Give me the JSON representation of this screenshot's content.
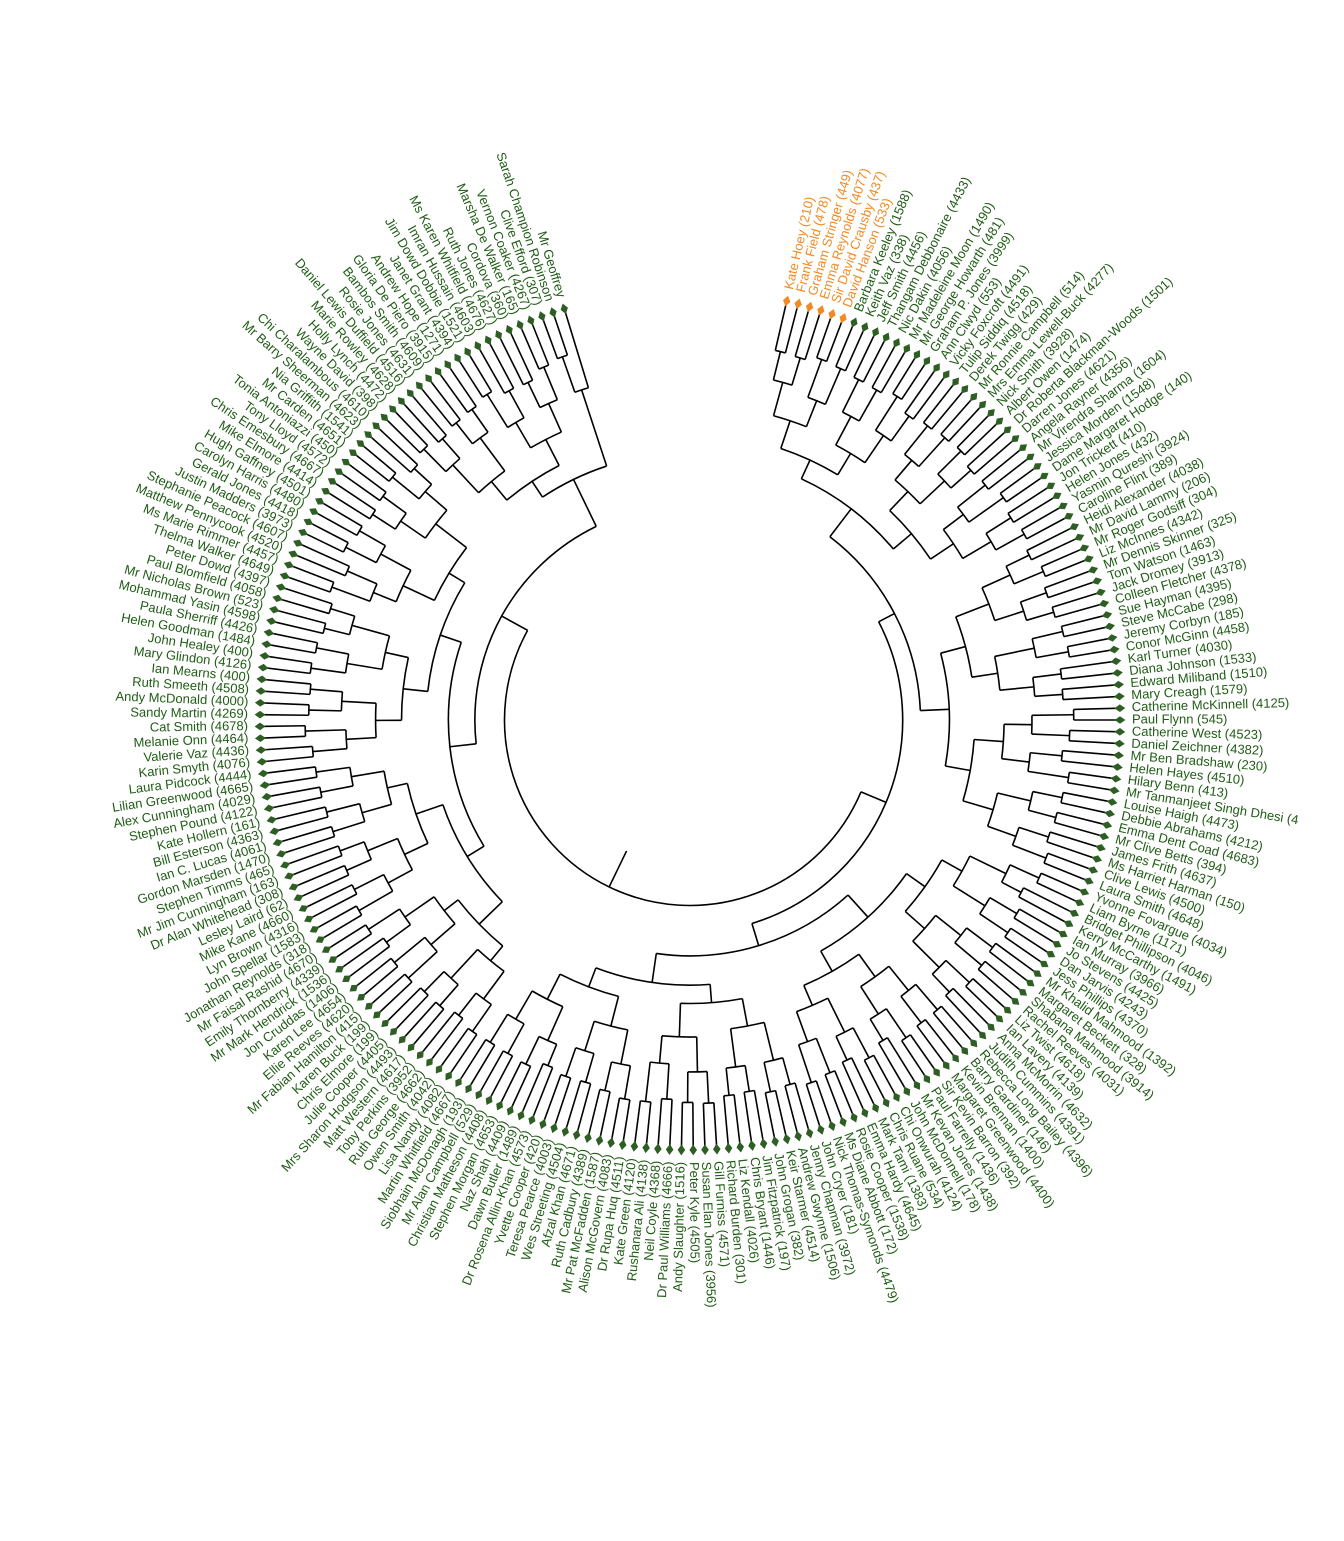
{
  "chart_data": {
    "type": "dendrogram",
    "layout": "circular",
    "title": "",
    "colors": {
      "branch": "#000000",
      "group_main": "#2e5e24",
      "group_highlight": "#f08a24",
      "label_main": "#1f5c15",
      "label_highlight": "#f08a24"
    },
    "highlight_group": [
      "Kate Hoey (210)",
      "Frank Field (478)",
      "Graham Stringer (449)",
      "Emma Reynolds (4077)",
      "Sir David Crausby (437)",
      "David Hanson (533)"
    ],
    "leaves": [
      "Kate Hoey (210)",
      "Frank Field (478)",
      "Graham Stringer (449)",
      "Emma Reynolds (4077)",
      "Sir David Crausby (437)",
      "David Hanson (533)",
      "Barbara Keeley (1588)",
      "Keith Vaz (338)",
      "Jeff Smith (4456)",
      "Thangam Debbonaire (4433)",
      "Nic Dakin (4056)",
      "Mr Madeleine Moon (1490)",
      "Mr George Howarth (481)",
      "Graham P. Jones (3999)",
      "Ann Clwyd (553)",
      "Vicky Foxcroft (4491)",
      "Tulip Siddiq (4518)",
      "Derek Twigg (429)",
      "Mr Ronnie Campbell (514)",
      "Mrs Emma Lewell-Buck (4277)",
      "Nick Smith (3928)",
      "Albert Owen (1474)",
      "Dr Roberta Blackman-Woods (1501)",
      "Darren Jones (4621)",
      "Angela Rayner (4356)",
      "Mr Virendra Sharma (1604)",
      "Jessica Morden (1548)",
      "Dame Margaret Hodge (140)",
      "Jon Trickett (410)",
      "Helen Jones (432)",
      "Yasmin Qureshi (3924)",
      "Caroline Flint (389)",
      "Heidi Alexander (4038)",
      "Mr David Lammy (206)",
      "Mr Roger Godsiff (304)",
      "Liz McInnes (4342)",
      "Mr Dennis Skinner (325)",
      "Tom Watson (1463)",
      "Jack Dromey (3913)",
      "Colleen Fletcher (4378)",
      "Sue Hayman (4395)",
      "Steve McCabe (298)",
      "Jeremy Corbyn (185)",
      "Conor McGinn (4458)",
      "Karl Turner (4030)",
      "Diana Johnson (1533)",
      "Edward Miliband (1510)",
      "Mary Creagh (1579)",
      "Catherine McKinnell (4125)",
      "Paul Flynn (545)",
      "Catherine West (4523)",
      "Daniel Zeichner (4382)",
      "Mr Ben Bradshaw (230)",
      "Helen Hayes (4510)",
      "Hilary Benn (413)",
      "Mr Tanmanjeet Singh Dhesi (4",
      "Louise Haigh (4473)",
      "Debbie Abrahams (4212)",
      "Emma Dent Coad (4683)",
      "Mr Clive Betts (394)",
      "James Frith (4637)",
      "Ms Harriet Harman (150)",
      "Clive Lewis (4500)",
      "Laura Smith (4648)",
      "Yvonne Fovargue (4034)",
      "Liam Byrne (1171)",
      "Bridget Phillipson (4046)",
      "Kerry McCarthy (1491)",
      "Ian Murray (3966)",
      "Jo Stevens (4425)",
      "Dan Jarvis (4243)",
      "Jess Phillips (4370)",
      "Mr Khalid Mahmood (1392)",
      "Margaret Beckett (328)",
      "Shabana Mahmood (3914)",
      "Rachel Reeves (4031)",
      "Liz Twist (4618)",
      "Ian Lavery (4139)",
      "Anna McMorrin (4632)",
      "Judith Cummins (4391)",
      "Rebecca Long Bailey (4396)",
      "Barry Gardiner (146)",
      "Kevin Brennan (1400)",
      "Margaret Greenwood (4400)",
      "Sir Kevin Barron (392)",
      "Paul Farrelly (1436)",
      "Mr Kevan Jones (1438)",
      "John McDonnell (178)",
      "Chi Onwurah (4124)",
      "Chris Ruane (534)",
      "Mark Tami (1383)",
      "Emma Hardy (4645)",
      "Rosie Cooper (1538)",
      "Ms Diane Abbott (172)",
      "Nick Thomas-Symonds (4479)",
      "John Cryer (181)",
      "Jenny Chapman (3972)",
      "Andrew Gwynne (1506)",
      "Keir Starmer (4514)",
      "John Grogan (382)",
      "Jim Fitzpatrick (197)",
      "Chris Bryant (1446)",
      "Liz Kendall (4026)",
      "Richard Burden (301)",
      "Gill Furniss (4571)",
      "Susan Elan Jones (3956)",
      "Peter Kyle (4505)",
      "Andy Slaughter (1516)",
      "Dr Paul Williams (4666)",
      "Neil Coyle (4368)",
      "Rushanara Ali (4138)",
      "Kate Green (4120)",
      "Dr Rupa Huq (4511)",
      "Alison McGovern (4083)",
      "Mr Pat McFadden (1587)",
      "Ruth Cadbury (4389)",
      "Afzal Khan (4671)",
      "Wes Streeting (4504)",
      "Teresa Pearce (4003)",
      "Yvette Cooper (420)",
      "Dr Rosena Allin-Khan (4573)",
      "Dawn Butler (1489)",
      "Naz Shah (4409)",
      "Stephen Morgan (4653)",
      "Christian Matheson (4408)",
      "Mr Alan Campbell (529)",
      "Siobhain McDonagh (193)",
      "Martin Whitfield (4667)",
      "Lisa Nandy (4082)",
      "Owen Smith (4042)",
      "Ruth George (4662)",
      "Toby Perkins (3952)",
      "Matt Western (4617)",
      "Mrs Sharon Hodgson (4493)",
      "Julie Cooper (4405)",
      "Chris Elmore (199)",
      "Karen Buck (199)",
      "Mr Fabian Hamilton (415)",
      "Ellie Reeves (4620)",
      "Karen Lee (4654)",
      "Jon Cruddas (1406)",
      "Mr Mark Hendrick (1536)",
      "Emily Thornberry (4339)",
      "Mr Faisal Rashid (4670)",
      "Jonathan Reynolds (318)",
      "John Spellar (1583)",
      "Lyn Brown (4316)",
      "Mike Kane (4660)",
      "Lesley Laird (62)",
      "Dr Alan Whitehead (308)",
      "Mr Jim Cunningham (163)",
      "Stephen Timms (465)",
      "Gordon Marsden (1470)",
      "Ian C. Lucas (4061)",
      "Bill Esterson (4363)",
      "Kate Hollern (161)",
      "Stephen Pound (4122)",
      "Alex Cunningham (4029)",
      "Lilian Greenwood (4665)",
      "Laura Pidcock (4444)",
      "Karin Smyth (4076)",
      "Valerie Vaz (4436)",
      "Melanie Onn (4464)",
      "Cat Smith (4678)",
      "Sandy Martin (4269)",
      "Andy McDonald (4000)",
      "Ruth Smeeth (4508)",
      "Ian Mearns (400)",
      "Mary Glindon (4126)",
      "John Healey (400)",
      "Helen Goodman (1484)",
      "Paula Sherriff (4426)",
      "Mohammad Yasin (4598)",
      "Mr Nicholas Brown (523)",
      "Paul Blomfield (4058)",
      "Peter Dowd (4397)",
      "Thelma Walker (4649)",
      "Ms Marie Rimmer (4457)",
      "Matthew Pennycook (4520)",
      "Stephanie Peacock (4607)",
      "Justin Madders (3973)",
      "Gerald Jones (4418)",
      "Carolyn Harris (4480)",
      "Hugh Gaffney (4501)",
      "Mike Elmore (4414)",
      "Chris Emesbury (4667)",
      "Tony Lloyd (4572)",
      "Tonia Antoniazzi (450)",
      "Mr Carden (4651)",
      "Nia Griffith (1541)",
      "Mr Barry Sheerman (4623)",
      "Chi Charalambous (4610)",
      "Wayne David (398)",
      "Holly Lynch (4472)",
      "Marie Rowley (4628)",
      "Daniel Lewis Duffield (4516)",
      "Rosie Jones (4631)",
      "Bambos Smith (4609)",
      "Gloria De Piero (3915)",
      "Andrew Hope (1271)",
      "Janet Grant (4394)",
      "Jim Dowd Dobbie (1521)",
      "Imran Hussain (4603)",
      "Ms Karen Whitfield (4676)",
      "Ruth Jones (4627)",
      "Cordova (360)",
      "Marsha De Walker (165)",
      "Vernon Coaker (4267)",
      "Clive Efford (307)",
      "Sarah Champion Robinson",
      "Mr Geoffrey"
    ],
    "annotations": []
  }
}
